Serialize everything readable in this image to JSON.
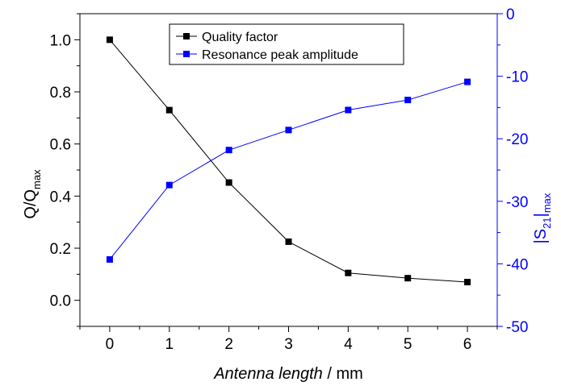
{
  "chart_data": {
    "type": "line",
    "x": [
      0,
      1,
      2,
      3,
      4,
      5,
      6
    ],
    "xlabel_italic": "Antenna length",
    "xlabel_rest": " / mm",
    "ylabel_main": "Q/Q",
    "ylabel_sub": "max",
    "y2label_main": "|S",
    "y2label_sub": "21",
    "y2label_end": "|",
    "y2label_sub2": "max",
    "xlim": [
      -0.5,
      6.5
    ],
    "ylim": [
      -0.1,
      1.1
    ],
    "y2lim": [
      -50,
      0
    ],
    "xticks": [
      0,
      1,
      2,
      3,
      4,
      5,
      6
    ],
    "yticks": [
      0.0,
      0.2,
      0.4,
      0.6,
      0.8,
      1.0
    ],
    "ytick_labels": [
      "0.0",
      "0.2",
      "0.4",
      "0.6",
      "0.8",
      "1.0"
    ],
    "y2ticks": [
      0,
      -10,
      -20,
      -30,
      -40,
      -50
    ],
    "y2tick_labels": [
      "0",
      "-10",
      "-20",
      "-30",
      "-40",
      "-50"
    ],
    "legend_position": "top-center",
    "series": [
      {
        "name": "Quality factor",
        "axis": "left",
        "color": "#000000",
        "values": [
          1.0,
          0.73,
          0.452,
          0.225,
          0.105,
          0.085,
          0.07
        ]
      },
      {
        "name": "Resonance peak amplitude",
        "axis": "right",
        "color": "#0000ff",
        "values": [
          -39.3,
          -27.4,
          -21.8,
          -18.6,
          -15.4,
          -13.8,
          -10.9
        ]
      }
    ]
  }
}
